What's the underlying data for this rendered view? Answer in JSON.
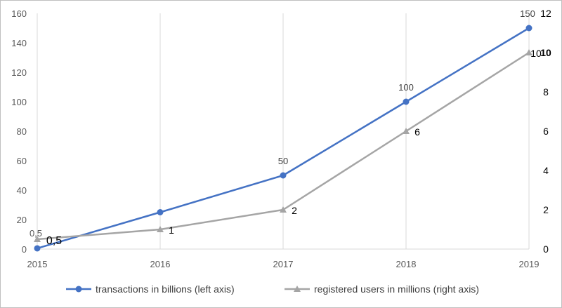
{
  "chart_data": {
    "type": "line",
    "x": [
      "2015",
      "2016",
      "2017",
      "2018",
      "2019"
    ],
    "series": [
      {
        "name": "transactions in billions (left axis)",
        "axis": "left",
        "values": [
          0.5,
          25,
          50,
          100,
          150
        ],
        "labels": [
          "0,5",
          null,
          "50",
          "100",
          "150"
        ],
        "marker": "circle",
        "color": "#4472c4"
      },
      {
        "name": "registered users in millions (right axis)",
        "axis": "right",
        "values": [
          0.5,
          1,
          2,
          6,
          10
        ],
        "labels": [
          "0,5",
          "1",
          "2",
          "6",
          "10"
        ],
        "marker": "triangle",
        "color": "#a5a5a5"
      }
    ],
    "y_left": {
      "min": 0,
      "max": 160,
      "ticks": [
        "0",
        "20",
        "40",
        "60",
        "80",
        "100",
        "120",
        "140",
        "160"
      ]
    },
    "y_right": {
      "min": 0,
      "max": 12,
      "ticks": [
        "0",
        "2",
        "4",
        "6",
        "8",
        "10",
        "12"
      ],
      "bold_tick": "10"
    },
    "grid": {
      "vertical": true,
      "horizontal": false
    },
    "legend": "bottom"
  }
}
